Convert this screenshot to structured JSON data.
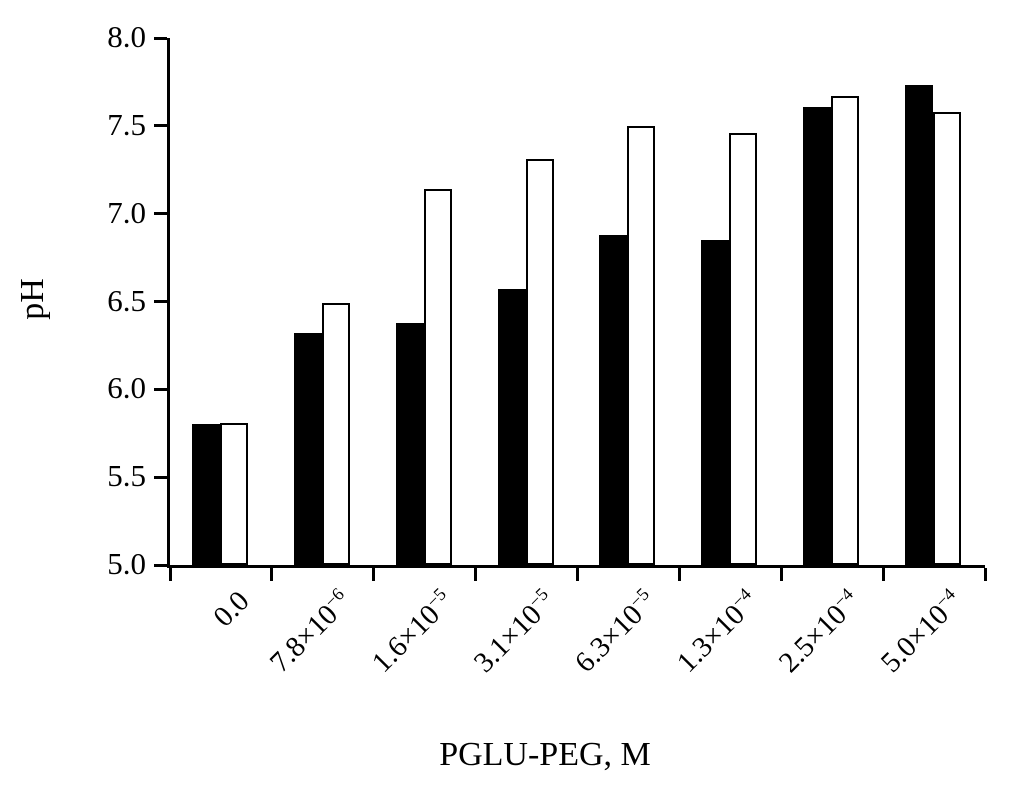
{
  "chart_data": {
    "type": "bar",
    "title": "",
    "xlabel": "PGLU-PEG, M",
    "ylabel": "pH",
    "ylim": [
      5.0,
      8.0
    ],
    "ytick_labels": [
      "5.0",
      "5.5",
      "6.0",
      "6.5",
      "7.0",
      "7.5",
      "8.0"
    ],
    "categories": [
      "0.0",
      "7.8×10^−6",
      "1.6×10^−5",
      "3.1×10^−5",
      "6.3×10^−5",
      "1.3×10^−4",
      "2.5×10^−4",
      "5.0×10^−4"
    ],
    "series": [
      {
        "name": "filled-bars",
        "color": "#000000",
        "values": [
          5.8,
          6.32,
          6.38,
          6.57,
          6.88,
          6.85,
          7.61,
          7.73
        ]
      },
      {
        "name": "open-bars",
        "color": "#ffffff",
        "values": [
          5.81,
          6.49,
          7.14,
          7.31,
          7.5,
          7.46,
          7.67,
          7.58
        ]
      }
    ],
    "legend_position": "none",
    "grid": false,
    "colors": {
      "axis": "#000000",
      "background": "#ffffff"
    }
  }
}
